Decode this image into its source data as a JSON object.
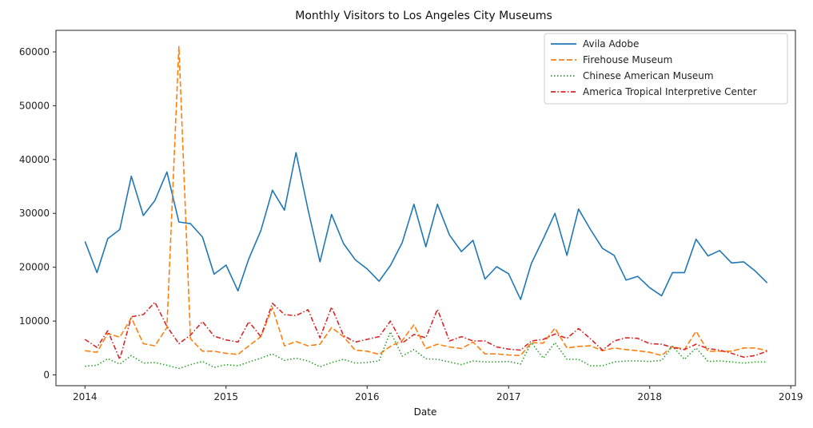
{
  "chart_data": {
    "type": "line",
    "title": "Monthly Visitors to Los Angeles City Museums",
    "xlabel": "Date",
    "ylabel": "",
    "x_axis_type": "date",
    "xlim": [
      "2013-10-18",
      "2019-01-13"
    ],
    "ylim": [
      -2000,
      64000
    ],
    "x_ticks": [
      "2014-01-01",
      "2015-01-01",
      "2016-01-01",
      "2017-01-01",
      "2018-01-01",
      "2019-01-01"
    ],
    "x_tick_labels": [
      "2014",
      "2015",
      "2016",
      "2017",
      "2018",
      "2019"
    ],
    "y_ticks": [
      0,
      10000,
      20000,
      30000,
      40000,
      50000,
      60000
    ],
    "y_tick_labels": [
      "0",
      "10000",
      "20000",
      "30000",
      "40000",
      "50000",
      "60000"
    ],
    "grid": false,
    "legend_position": "top-right",
    "x": [
      "2014-01-01",
      "2014-02-01",
      "2014-03-01",
      "2014-04-01",
      "2014-05-01",
      "2014-06-01",
      "2014-07-01",
      "2014-08-01",
      "2014-09-01",
      "2014-10-01",
      "2014-11-01",
      "2014-12-01",
      "2015-01-01",
      "2015-02-01",
      "2015-03-01",
      "2015-04-01",
      "2015-05-01",
      "2015-06-01",
      "2015-07-01",
      "2015-08-01",
      "2015-09-01",
      "2015-10-01",
      "2015-11-01",
      "2015-12-01",
      "2016-01-01",
      "2016-02-01",
      "2016-03-01",
      "2016-04-01",
      "2016-05-01",
      "2016-06-01",
      "2016-07-01",
      "2016-08-01",
      "2016-09-01",
      "2016-10-01",
      "2016-11-01",
      "2016-12-01",
      "2017-01-01",
      "2017-02-01",
      "2017-03-01",
      "2017-04-01",
      "2017-05-01",
      "2017-06-01",
      "2017-07-01",
      "2017-08-01",
      "2017-09-01",
      "2017-10-01",
      "2017-11-01",
      "2017-12-01",
      "2018-01-01",
      "2018-02-01",
      "2018-03-01",
      "2018-04-01",
      "2018-05-01",
      "2018-06-01",
      "2018-07-01",
      "2018-08-01",
      "2018-09-01",
      "2018-10-01",
      "2018-11-01"
    ],
    "series": [
      {
        "name": "Avila Adobe",
        "color": "#1f77b4",
        "dash": "solid",
        "values": [
          24800,
          19000,
          25300,
          27000,
          36900,
          29600,
          32400,
          37700,
          28400,
          28100,
          25600,
          18700,
          20400,
          15600,
          21600,
          26800,
          34300,
          30600,
          41300,
          30700,
          21000,
          29800,
          24400,
          21400,
          19700,
          17400,
          20300,
          24600,
          31700,
          23800,
          31700,
          26000,
          22900,
          25000,
          17800,
          20100,
          18800,
          14000,
          20700,
          25300,
          30000,
          22200,
          30800,
          27000,
          23500,
          22200,
          17600,
          18300,
          16200,
          14700,
          19000,
          19000,
          25200,
          22100,
          23100,
          20800,
          21000,
          19300,
          17100
        ]
      },
      {
        "name": "Firehouse Museum",
        "color": "#ff7f0e",
        "dash": "dashed",
        "values": [
          4500,
          4200,
          7700,
          7000,
          10600,
          5800,
          5400,
          8800,
          61000,
          6700,
          4400,
          4400,
          4000,
          3800,
          5400,
          7100,
          12500,
          5400,
          6200,
          5400,
          5700,
          8800,
          7100,
          4600,
          4400,
          3800,
          5300,
          6400,
          9300,
          4900,
          5700,
          5200,
          4900,
          6100,
          3900,
          3900,
          3700,
          3600,
          6000,
          5900,
          8700,
          5000,
          5300,
          5400,
          4500,
          5000,
          4700,
          4500,
          4200,
          3600,
          5300,
          4700,
          8100,
          4400,
          4400,
          4400,
          5000,
          5000,
          4500
        ]
      },
      {
        "name": "Chinese American Museum",
        "color": "#2ca02c",
        "dash": "dotted",
        "values": [
          1600,
          1800,
          3000,
          2000,
          3600,
          2200,
          2300,
          1800,
          1200,
          1900,
          2500,
          1400,
          1900,
          1700,
          2400,
          3100,
          3900,
          2700,
          3100,
          2600,
          1500,
          2300,
          2900,
          2200,
          2300,
          2600,
          8000,
          3500,
          4700,
          3000,
          2900,
          2400,
          1900,
          2600,
          2400,
          2400,
          2500,
          2000,
          6000,
          3100,
          6000,
          2900,
          2900,
          1700,
          1700,
          2400,
          2600,
          2600,
          2500,
          2700,
          5300,
          2900,
          5000,
          2500,
          2600,
          2400,
          2200,
          2400,
          2400
        ]
      },
      {
        "name": "America Tropical Interpretive Center",
        "color": "#d62728",
        "dash": "dashdot",
        "values": [
          6600,
          5100,
          8200,
          2900,
          10800,
          11200,
          13500,
          9000,
          5800,
          7400,
          9900,
          7200,
          6500,
          6100,
          9900,
          7100,
          13300,
          11200,
          11000,
          12100,
          6900,
          12600,
          7300,
          6100,
          6600,
          7100,
          10000,
          5900,
          7500,
          6900,
          12200,
          6300,
          7100,
          6300,
          6300,
          5200,
          4800,
          4600,
          6300,
          6600,
          7600,
          6800,
          8600,
          6700,
          4600,
          6300,
          6900,
          6800,
          5800,
          5700,
          5100,
          4700,
          5700,
          4900,
          4600,
          4000,
          3300,
          3600,
          4400
        ]
      }
    ]
  }
}
